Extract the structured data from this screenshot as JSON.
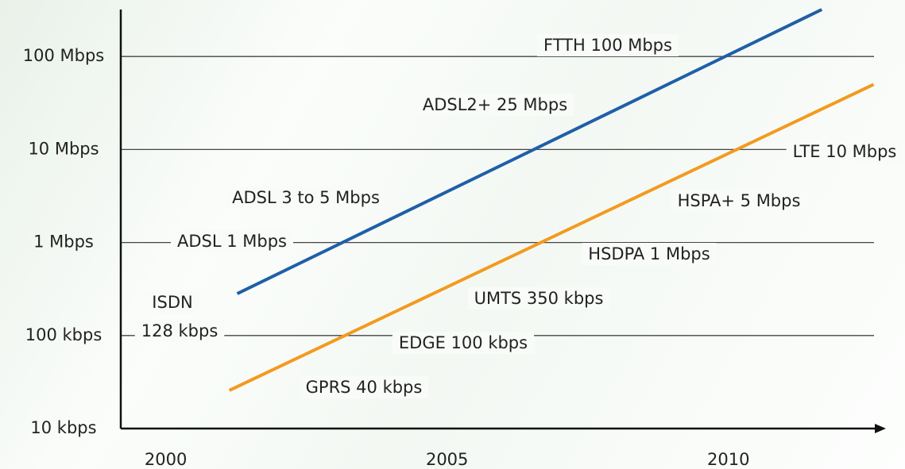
{
  "chart_data": {
    "type": "line",
    "log_y": true,
    "grid": true,
    "xlim": [
      1999.2,
      2012.8
    ],
    "xticks": [
      2000,
      2005,
      2010
    ],
    "ylim": [
      10,
      320000
    ],
    "yticks": [
      {
        "value": 10,
        "label": "10 kbps"
      },
      {
        "value": 100,
        "label": "100 kbps"
      },
      {
        "value": 1000,
        "label": "1 Mbps"
      },
      {
        "value": 10000,
        "label": "10 Mbps"
      },
      {
        "value": 100000,
        "label": "100 Mbps"
      }
    ],
    "series": [
      {
        "color": "#1f5fa8",
        "x": [
          2001.27,
          2011.66
        ],
        "values": [
          282,
          320000
        ]
      },
      {
        "color": "#f39a1e",
        "x": [
          2001.13,
          2012.58
        ],
        "values": [
          25.7,
          50000
        ]
      }
    ],
    "annotations": [
      "FTTH 100 Mbps",
      "ADSL2+ 25 Mbps",
      "LTE 10 Mbps",
      "ADSL 3 to 5 Mbps",
      "HSPA+ 5 Mbps",
      "ADSL 1 Mbps",
      "HSDPA 1 Mbps",
      "ISDN",
      "128 kbps",
      "UMTS 350 kbps",
      "EDGE 100 kbps",
      "GPRS 40 kbps"
    ]
  }
}
